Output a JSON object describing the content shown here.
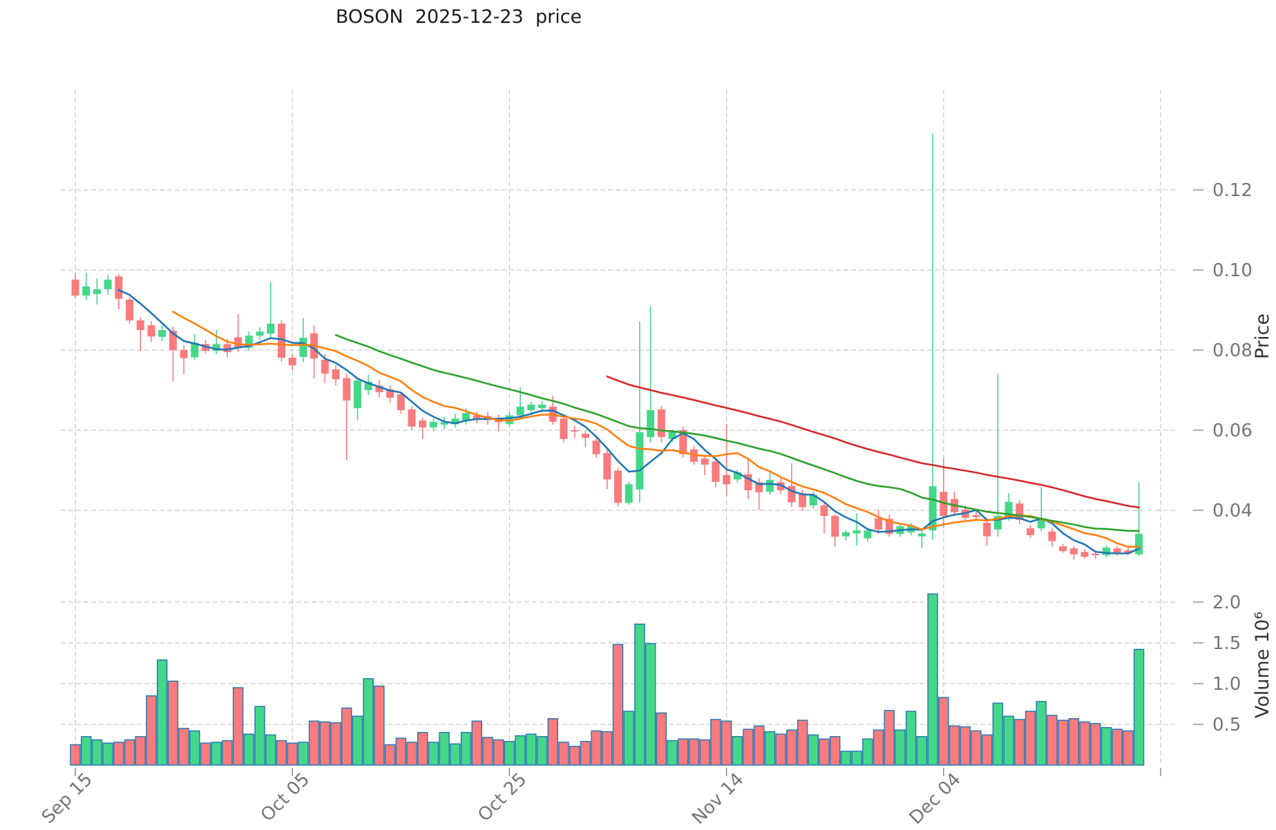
{
  "chart_data": {
    "type": "candlestick",
    "title": "BOSON  2025-12-23  price",
    "ylabel_price": "Price",
    "ylabel_volume": "Volume  10⁶",
    "legend_position": "none",
    "grid": true,
    "x_ticks": [
      {
        "index": 0,
        "label": "Sep 15"
      },
      {
        "index": 20,
        "label": "Oct 05"
      },
      {
        "index": 40,
        "label": "Oct 25"
      },
      {
        "index": 60,
        "label": "Nov 14"
      },
      {
        "index": 80,
        "label": "Dec 04"
      },
      {
        "index": 100,
        "label": ""
      }
    ],
    "price_ticks": [
      {
        "value": 0.12,
        "label": "0.12"
      },
      {
        "value": 0.1,
        "label": "0.10"
      },
      {
        "value": 0.08,
        "label": "0.08"
      },
      {
        "value": 0.06,
        "label": "0.06"
      },
      {
        "value": 0.04,
        "label": "0.04"
      }
    ],
    "volume_ticks": [
      {
        "value": 2.0,
        "label": "2.0"
      },
      {
        "value": 1.5,
        "label": "1.5"
      },
      {
        "value": 1.0,
        "label": "1.0"
      },
      {
        "value": 0.5,
        "label": "0.5"
      }
    ],
    "price_range": [
      0.025,
      0.14
    ],
    "volume_unit": "1e6",
    "mav_windows": [
      5,
      10,
      25,
      50
    ],
    "colors": {
      "up": "#45d789",
      "down": "#f97b7d",
      "volume_edge": "#2878b5",
      "ma5": "#1f77b4",
      "ma10": "#ff7f0e",
      "ma25": "#2ca02c",
      "ma50": "#d62728",
      "grid": "#c9c9c9",
      "tick_text": "#757575",
      "axis_label_text": "#333333",
      "title_text": "#1a1a1a"
    },
    "ohlc": [
      [
        0.0976,
        0.0993,
        0.093,
        0.0936
      ],
      [
        0.0936,
        0.0993,
        0.0925,
        0.0959
      ],
      [
        0.094,
        0.0979,
        0.0914,
        0.0952
      ],
      [
        0.0952,
        0.0988,
        0.0938,
        0.0976
      ],
      [
        0.0984,
        0.099,
        0.0902,
        0.0928
      ],
      [
        0.0926,
        0.0932,
        0.0865,
        0.0874
      ],
      [
        0.0874,
        0.0882,
        0.0798,
        0.085
      ],
      [
        0.0862,
        0.0872,
        0.082,
        0.0834
      ],
      [
        0.0833,
        0.0862,
        0.0822,
        0.085
      ],
      [
        0.0848,
        0.0858,
        0.0722,
        0.08
      ],
      [
        0.08,
        0.0812,
        0.074,
        0.078
      ],
      [
        0.0782,
        0.084,
        0.0775,
        0.0818
      ],
      [
        0.0815,
        0.0826,
        0.0792,
        0.0798
      ],
      [
        0.0798,
        0.085,
        0.079,
        0.0815
      ],
      [
        0.0815,
        0.0828,
        0.0782,
        0.0795
      ],
      [
        0.0832,
        0.089,
        0.0795,
        0.0806
      ],
      [
        0.0806,
        0.0846,
        0.0798,
        0.0836
      ],
      [
        0.0836,
        0.0857,
        0.0826,
        0.0846
      ],
      [
        0.0841,
        0.0969,
        0.083,
        0.0866
      ],
      [
        0.0866,
        0.0875,
        0.0772,
        0.0781
      ],
      [
        0.0781,
        0.079,
        0.075,
        0.0762
      ],
      [
        0.0783,
        0.0881,
        0.077,
        0.0831
      ],
      [
        0.0842,
        0.0862,
        0.0729,
        0.0779
      ],
      [
        0.0776,
        0.079,
        0.0717,
        0.0741
      ],
      [
        0.0752,
        0.0762,
        0.0712,
        0.0727
      ],
      [
        0.073,
        0.0741,
        0.0525,
        0.0674
      ],
      [
        0.0655,
        0.073,
        0.0624,
        0.0724
      ],
      [
        0.07,
        0.0738,
        0.0688,
        0.0721
      ],
      [
        0.0711,
        0.0726,
        0.0682,
        0.0695
      ],
      [
        0.0702,
        0.0711,
        0.0668,
        0.0681
      ],
      [
        0.069,
        0.0696,
        0.0641,
        0.065
      ],
      [
        0.0652,
        0.0661,
        0.0601,
        0.0609
      ],
      [
        0.0624,
        0.0631,
        0.0578,
        0.0607
      ],
      [
        0.0607,
        0.0629,
        0.0597,
        0.0621
      ],
      [
        0.0614,
        0.0633,
        0.0604,
        0.062
      ],
      [
        0.0615,
        0.0641,
        0.0607,
        0.0629
      ],
      [
        0.0624,
        0.0655,
        0.0614,
        0.0643
      ],
      [
        0.0637,
        0.0646,
        0.0617,
        0.0626
      ],
      [
        0.0635,
        0.0646,
        0.0614,
        0.0625
      ],
      [
        0.0631,
        0.0639,
        0.0597,
        0.062
      ],
      [
        0.0615,
        0.0646,
        0.0609,
        0.0637
      ],
      [
        0.0637,
        0.0707,
        0.0629,
        0.0659
      ],
      [
        0.065,
        0.0671,
        0.0639,
        0.0664
      ],
      [
        0.0655,
        0.0673,
        0.0644,
        0.0664
      ],
      [
        0.0659,
        0.0686,
        0.0613,
        0.0621
      ],
      [
        0.0629,
        0.0636,
        0.0569,
        0.0578
      ],
      [
        0.06,
        0.0611,
        0.0581,
        0.0598
      ],
      [
        0.0591,
        0.0599,
        0.0557,
        0.0581
      ],
      [
        0.0574,
        0.0581,
        0.0531,
        0.054
      ],
      [
        0.0543,
        0.0551,
        0.0453,
        0.0477
      ],
      [
        0.0499,
        0.0506,
        0.0409,
        0.0419
      ],
      [
        0.0419,
        0.0471,
        0.0414,
        0.0465
      ],
      [
        0.0452,
        0.0871,
        0.0419,
        0.0595
      ],
      [
        0.0583,
        0.0909,
        0.0569,
        0.065
      ],
      [
        0.0652,
        0.066,
        0.0569,
        0.0583
      ],
      [
        0.0578,
        0.0601,
        0.057,
        0.0595
      ],
      [
        0.06,
        0.0609,
        0.0531,
        0.054
      ],
      [
        0.0552,
        0.0561,
        0.0514,
        0.0521
      ],
      [
        0.0529,
        0.0536,
        0.0488,
        0.0514
      ],
      [
        0.0522,
        0.0531,
        0.0457,
        0.0471
      ],
      [
        0.0488,
        0.0615,
        0.0436,
        0.0465
      ],
      [
        0.0477,
        0.0501,
        0.0469,
        0.0495
      ],
      [
        0.049,
        0.0531,
        0.0428,
        0.045
      ],
      [
        0.047,
        0.0481,
        0.0401,
        0.0445
      ],
      [
        0.0446,
        0.0501,
        0.0439,
        0.0476
      ],
      [
        0.047,
        0.0481,
        0.0441,
        0.045
      ],
      [
        0.0461,
        0.0517,
        0.0408,
        0.042
      ],
      [
        0.0442,
        0.0451,
        0.0399,
        0.0408
      ],
      [
        0.0412,
        0.0446,
        0.0404,
        0.0439
      ],
      [
        0.0412,
        0.0421,
        0.0342,
        0.0386
      ],
      [
        0.0386,
        0.0391,
        0.0309,
        0.0334
      ],
      [
        0.0335,
        0.0351,
        0.0324,
        0.0345
      ],
      [
        0.0342,
        0.0393,
        0.0312,
        0.035
      ],
      [
        0.033,
        0.0356,
        0.0321,
        0.0349
      ],
      [
        0.038,
        0.0401,
        0.0341,
        0.0352
      ],
      [
        0.0379,
        0.0389,
        0.0334,
        0.0341
      ],
      [
        0.0341,
        0.0366,
        0.0334,
        0.036
      ],
      [
        0.0345,
        0.0369,
        0.0337,
        0.0362
      ],
      [
        0.0335,
        0.0349,
        0.0306,
        0.0342
      ],
      [
        0.035,
        0.134,
        0.0327,
        0.046
      ],
      [
        0.0446,
        0.0532,
        0.0356,
        0.0386
      ],
      [
        0.0428,
        0.0447,
        0.0385,
        0.0395
      ],
      [
        0.0402,
        0.0413,
        0.0372,
        0.0381
      ],
      [
        0.0388,
        0.0399,
        0.0374,
        0.0383
      ],
      [
        0.0369,
        0.0379,
        0.0311,
        0.0335
      ],
      [
        0.0352,
        0.0741,
        0.0334,
        0.0386
      ],
      [
        0.0381,
        0.0443,
        0.0374,
        0.0421
      ],
      [
        0.0417,
        0.0426,
        0.0366,
        0.0376
      ],
      [
        0.0355,
        0.0363,
        0.0331,
        0.0338
      ],
      [
        0.0355,
        0.0458,
        0.0347,
        0.0378
      ],
      [
        0.0347,
        0.0356,
        0.0309,
        0.0323
      ],
      [
        0.031,
        0.0316,
        0.0294,
        0.0298
      ],
      [
        0.0305,
        0.0311,
        0.0277,
        0.029
      ],
      [
        0.0296,
        0.0303,
        0.0279,
        0.0284
      ],
      [
        0.0292,
        0.0301,
        0.0279,
        0.0288
      ],
      [
        0.0288,
        0.0313,
        0.0282,
        0.0307
      ],
      [
        0.0305,
        0.0311,
        0.0287,
        0.0292
      ],
      [
        0.03,
        0.0309,
        0.0287,
        0.0292
      ],
      [
        0.029,
        0.0471,
        0.0284,
        0.0341
      ]
    ],
    "volume": [
      0.25,
      0.35,
      0.31,
      0.27,
      0.28,
      0.31,
      0.35,
      0.85,
      1.29,
      1.03,
      0.45,
      0.42,
      0.27,
      0.28,
      0.3,
      0.95,
      0.38,
      0.72,
      0.37,
      0.3,
      0.27,
      0.28,
      0.54,
      0.53,
      0.52,
      0.7,
      0.6,
      1.06,
      0.97,
      0.25,
      0.33,
      0.28,
      0.4,
      0.28,
      0.4,
      0.26,
      0.4,
      0.54,
      0.34,
      0.31,
      0.29,
      0.36,
      0.38,
      0.35,
      0.57,
      0.28,
      0.23,
      0.29,
      0.42,
      0.41,
      1.48,
      0.66,
      1.73,
      1.49,
      0.64,
      0.3,
      0.32,
      0.32,
      0.31,
      0.56,
      0.54,
      0.35,
      0.44,
      0.48,
      0.41,
      0.38,
      0.43,
      0.55,
      0.37,
      0.32,
      0.35,
      0.17,
      0.17,
      0.32,
      0.43,
      0.67,
      0.43,
      0.66,
      0.35,
      2.1,
      0.83,
      0.48,
      0.47,
      0.42,
      0.37,
      0.76,
      0.6,
      0.56,
      0.66,
      0.78,
      0.61,
      0.55,
      0.57,
      0.53,
      0.51,
      0.46,
      0.44,
      0.42,
      1.42
    ]
  }
}
